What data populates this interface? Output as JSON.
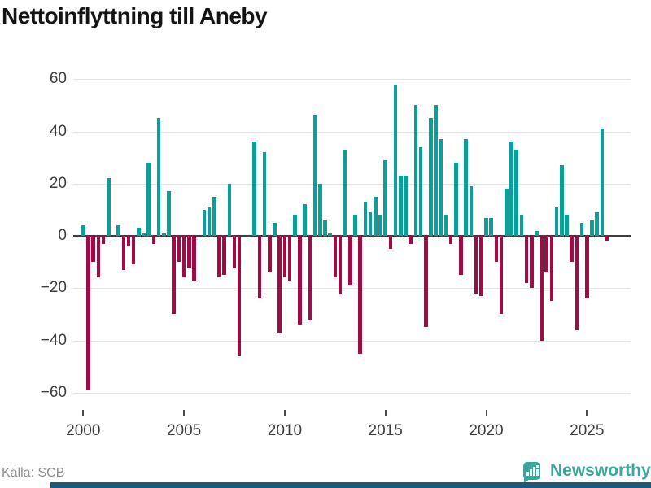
{
  "title": "Nettoinflyttning till Aneby",
  "source": "Källa: SCB",
  "brand": {
    "name": "Newsworthy",
    "icon": "bar-chart-speech-bubble-icon",
    "color": "#3aa79f"
  },
  "colors": {
    "positive_bar": "#0aa099",
    "negative_bar": "#9f0c45",
    "gridline": "#e4e4e4",
    "zero_line": "#3f3f3f",
    "bottom_accent_bar": "#20587a"
  },
  "chart_data": {
    "type": "bar",
    "title": "Nettoinflyttning till Aneby",
    "xlabel": "",
    "ylabel": "",
    "ylim": [
      -60,
      60
    ],
    "grid": "horizontal",
    "y_tick_labels": [
      "60",
      "40",
      "20",
      "0",
      "−20",
      "−40",
      "−60"
    ],
    "y_tick_values": [
      60,
      40,
      20,
      0,
      -20,
      -40,
      -60
    ],
    "x_tick_labels": [
      "2000",
      "2005",
      "2010",
      "2015",
      "2020",
      "2025"
    ],
    "start_period": "2000 Q1",
    "end_period": "2026 Q1",
    "period_type": "quarter",
    "values": [
      4,
      -59,
      -10,
      -16,
      -3,
      22,
      0,
      4,
      -13,
      -4,
      -11,
      3,
      1,
      28,
      -3,
      45,
      1,
      17,
      -30,
      -10,
      -16,
      -12,
      -17,
      0,
      10,
      11,
      15,
      -16,
      -15,
      20,
      -12,
      -46,
      0,
      0,
      36,
      -24,
      32,
      -14,
      5,
      -37,
      -16,
      -17,
      8,
      -34,
      12,
      -32,
      46,
      20,
      6,
      1,
      -16,
      -22,
      33,
      -19,
      8,
      -45,
      13,
      9,
      15,
      8,
      29,
      -5,
      58,
      23,
      23,
      -3,
      50,
      34,
      -35,
      45,
      50,
      37,
      8,
      -3,
      28,
      -15,
      37,
      19,
      -22,
      -23,
      7,
      7,
      -10,
      -30,
      18,
      36,
      33,
      8,
      -18,
      -20,
      2,
      -40,
      -14,
      -25,
      11,
      27,
      8,
      -10,
      -36,
      5,
      -24,
      6,
      9,
      41,
      -2
    ]
  }
}
